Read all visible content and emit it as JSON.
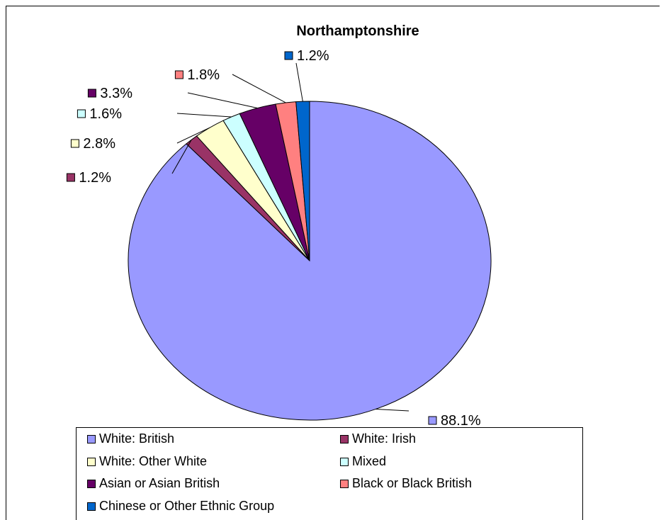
{
  "chart_data": {
    "type": "pie",
    "title": "Northamptonshire",
    "start_angle_deg": 0,
    "direction": "counterclockwise",
    "slices": [
      {
        "name": "White: British",
        "value": 88.1,
        "label": "88.1%",
        "color": "#9999FF"
      },
      {
        "name": "White: Irish",
        "value": 1.2,
        "label": "1.2%",
        "color": "#993366"
      },
      {
        "name": "White: Other White",
        "value": 2.8,
        "label": "2.8%",
        "color": "#FFFFCC"
      },
      {
        "name": "Mixed",
        "value": 1.6,
        "label": "1.6%",
        "color": "#CCFFFF"
      },
      {
        "name": "Asian or Asian British",
        "value": 3.3,
        "label": "3.3%",
        "color": "#660066"
      },
      {
        "name": "Black or Black British",
        "value": 1.8,
        "label": "1.8%",
        "color": "#FF8080"
      },
      {
        "name": "Chinese or Other Ethnic Group",
        "value": 1.2,
        "label": "1.2%",
        "color": "#0066CC"
      }
    ],
    "legend": {
      "placement": "bottom",
      "columns": 2,
      "entries": [
        "White: British",
        "White: Irish",
        "White: Other White",
        "Mixed",
        "Asian or Asian British",
        "Black or Black British",
        "Chinese or Other Ethnic Group"
      ]
    }
  }
}
